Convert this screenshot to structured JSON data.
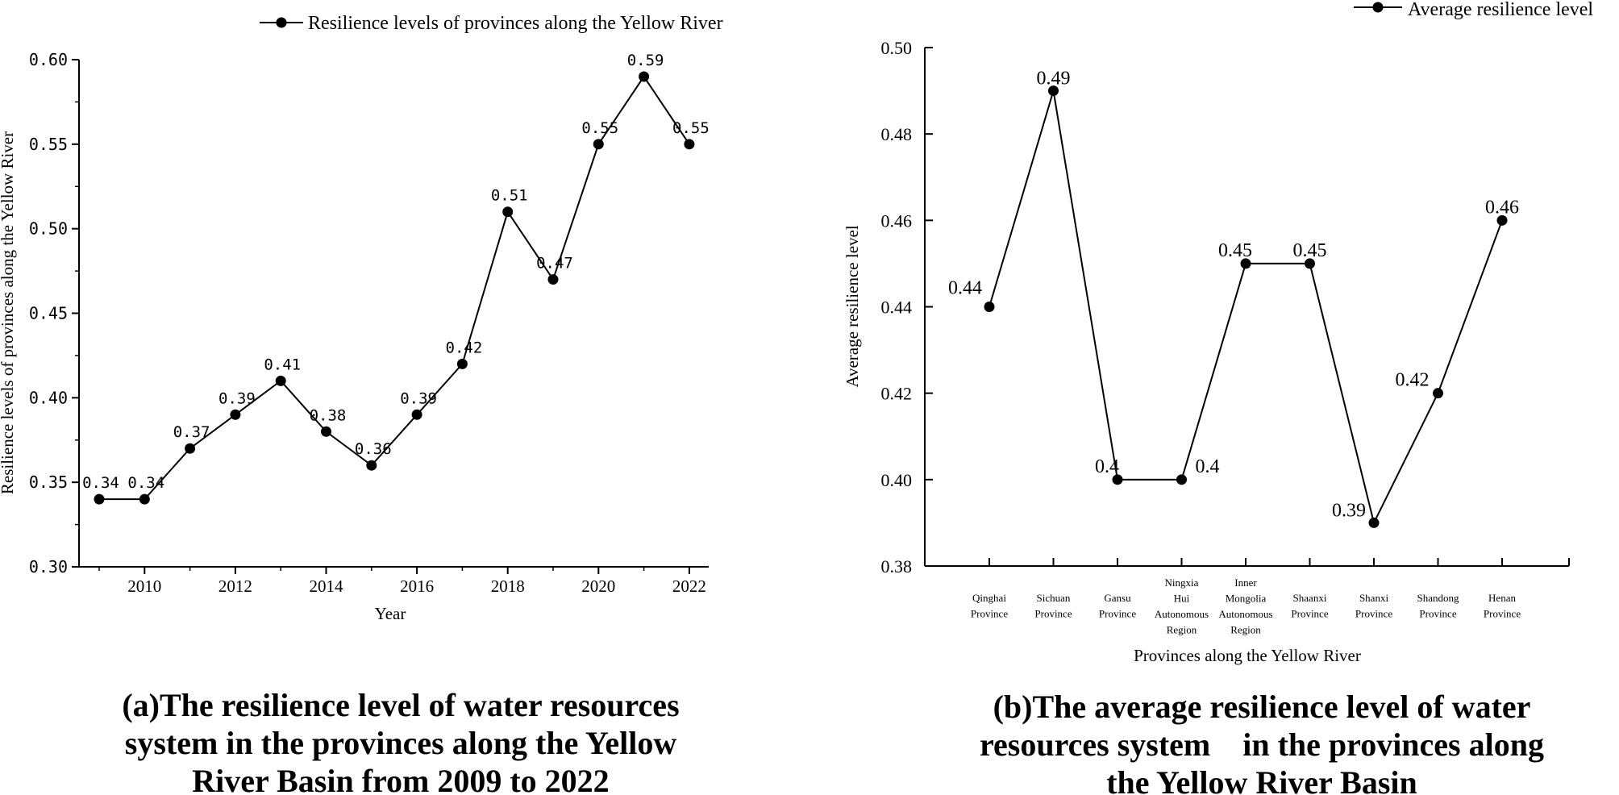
{
  "chart_data": [
    {
      "type": "line",
      "title": "(a)The resilience level of water resources system in the provinces along the Yellow River Basin from 2009 to 2022",
      "caption_lines": [
        "(a)The resilience level of water resources",
        "system in the provinces along the Yellow",
        "River Basin from 2009 to 2022"
      ],
      "xlabel": "Year",
      "ylabel": "Resilience levels of provinces along the Yellow River",
      "legend": "Resilience levels of provinces along the Yellow River",
      "legend_position": "top",
      "x": [
        2009,
        2010,
        2011,
        2012,
        2013,
        2014,
        2015,
        2016,
        2017,
        2018,
        2019,
        2020,
        2021,
        2022
      ],
      "values": [
        0.34,
        0.34,
        0.37,
        0.39,
        0.41,
        0.38,
        0.36,
        0.39,
        0.42,
        0.51,
        0.47,
        0.55,
        0.59,
        0.55
      ],
      "data_labels": [
        "0.34",
        "0.34",
        "0.37",
        "0.39",
        "0.41",
        "0.38",
        "0.36",
        "0.39",
        "0.42",
        "0.51",
        "0.47",
        "0.55",
        "0.59",
        "0.55"
      ],
      "xticks": [
        "2010",
        "2012",
        "2014",
        "2016",
        "2018",
        "2020",
        "2022"
      ],
      "xtick_values": [
        2010,
        2012,
        2014,
        2016,
        2018,
        2020,
        2022
      ],
      "xlim": [
        2009,
        2022
      ],
      "ylim": [
        0.3,
        0.6
      ],
      "yticks": [
        "0.30",
        "0.35",
        "0.40",
        "0.45",
        "0.50",
        "0.55",
        "0.60"
      ],
      "ytick_values": [
        0.3,
        0.35,
        0.4,
        0.45,
        0.5,
        0.55,
        0.6
      ]
    },
    {
      "type": "line",
      "title": "(b)The average resilience level of water resources system in the provinces along the Yellow River Basin",
      "caption_lines": [
        "(b)The average resilience level of water",
        "resources system    in the provinces along",
        "the Yellow River Basin"
      ],
      "xlabel": "Provinces along the Yellow River",
      "ylabel": "Average resilience level",
      "legend": "Average resilience level",
      "legend_position": "top-right",
      "categories": [
        [
          "Qinghai",
          "Province"
        ],
        [
          "Sichuan",
          "Province"
        ],
        [
          "Gansu",
          "Province"
        ],
        [
          "Ningxia",
          "Hui",
          "Autonomous",
          "Region"
        ],
        [
          "Inner",
          "Mongolia",
          "Autonomous",
          "Region"
        ],
        [
          "Shaanxi",
          "Province"
        ],
        [
          "Shanxi",
          "Province"
        ],
        [
          "Shandong",
          "Province"
        ],
        [
          "Henan",
          "Province"
        ]
      ],
      "values": [
        0.44,
        0.49,
        0.4,
        0.4,
        0.45,
        0.45,
        0.39,
        0.42,
        0.46
      ],
      "data_labels": [
        "0.44",
        "0.49",
        "0.4",
        "0.4",
        "0.45",
        "0.45",
        "0.39",
        "0.42",
        "0.46"
      ],
      "ylim": [
        0.38,
        0.5
      ],
      "yticks": [
        "0.38",
        "0.40",
        "0.42",
        "0.44",
        "0.46",
        "0.48",
        "0.50"
      ],
      "ytick_values": [
        0.38,
        0.4,
        0.42,
        0.44,
        0.46,
        0.48,
        0.5
      ]
    }
  ]
}
